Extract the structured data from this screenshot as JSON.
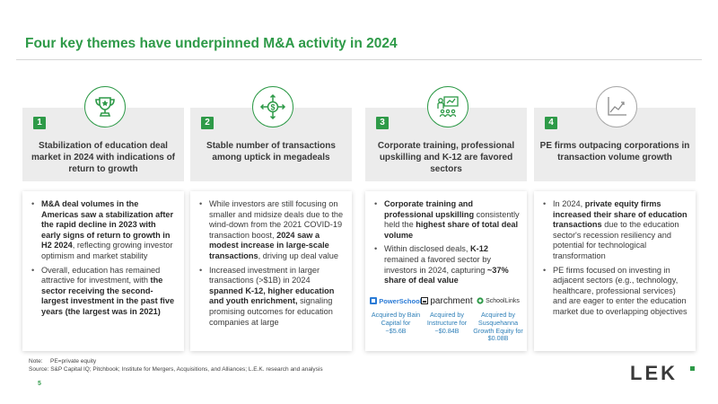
{
  "title": "Four key themes have underpinned M&A activity in 2024",
  "colors": {
    "accent": "#2e9a48",
    "header_bg": "#ececec",
    "link_blue": "#2e7fb8"
  },
  "columns": [
    {
      "number": "1",
      "icon": "trophy-icon",
      "heading": "Stabilization of education deal market in 2024 with indications of return to growth",
      "bullets": [
        [
          {
            "t": "M&A deal volumes in the Americas saw a stabilization after the rapid decline in 2023 with early signs of return to growth in H2 2024",
            "b": true
          },
          {
            "t": ", reflecting growing investor optimism and market stability",
            "b": false
          }
        ],
        [
          {
            "t": "Overall, education has remained attractive for investment, with ",
            "b": false
          },
          {
            "t": "the sector receiving the second-largest investment in the past five years (the largest was in 2021)",
            "b": true
          }
        ]
      ]
    },
    {
      "number": "2",
      "icon": "dollar-arrows-icon",
      "heading": "Stable number of transactions among uptick in megadeals",
      "bullets": [
        [
          {
            "t": "While investors are still focusing on smaller and midsize deals due to the wind-down from the 2021 COVID-19 transaction boost, ",
            "b": false
          },
          {
            "t": "2024 saw a modest increase in large-scale transactions",
            "b": true
          },
          {
            "t": ", driving up deal value",
            "b": false
          }
        ],
        [
          {
            "t": "Increased investment in larger transactions (>$1B) in 2024 ",
            "b": false
          },
          {
            "t": "spanned K-12, higher education and youth enrichment,",
            "b": true
          },
          {
            "t": " signaling promising outcomes for education companies at large",
            "b": false
          }
        ]
      ]
    },
    {
      "number": "3",
      "icon": "training-icon",
      "heading": "Corporate training, professional upskilling and K-12 are favored sectors",
      "bullets": [
        [
          {
            "t": "Corporate training and professional upskilling",
            "b": true
          },
          {
            "t": " consistently held the ",
            "b": false
          },
          {
            "t": "highest share of total deal volume",
            "b": true
          }
        ],
        [
          {
            "t": "Within disclosed deals, ",
            "b": false
          },
          {
            "t": "K-12",
            "b": true
          },
          {
            "t": " remained a favored sector by investors in 2024, capturing ",
            "b": false
          },
          {
            "t": "~37% share of deal value",
            "b": true
          }
        ]
      ],
      "logos": [
        {
          "name": "PowerSchool",
          "icon": "powerschool-logo-icon",
          "caption": "Acquired by Bain Capital for ~$5.6B"
        },
        {
          "name": "parchment",
          "icon": "parchment-logo-icon",
          "caption": "Acquired by Instructure for ~$0.84B"
        },
        {
          "name": "SchoolLinks",
          "icon": "schoollinks-logo-icon",
          "caption": "Acquired by Susquehanna Growth Equity for $0.08B"
        }
      ]
    },
    {
      "number": "4",
      "icon": "line-chart-icon",
      "heading": "PE firms outpacing corporations in transaction volume growth",
      "bullets": [
        [
          {
            "t": "In 2024, ",
            "b": false
          },
          {
            "t": "private equity firms increased their share of education transactions",
            "b": true
          },
          {
            "t": " due to the education sector's recession resiliency and potential for technological transformation",
            "b": false
          }
        ],
        [
          {
            "t": "PE firms focused on investing in adjacent sectors (e.g., technology, healthcare, professional services) and are eager to enter the education market due to overlapping objectives",
            "b": false
          }
        ]
      ]
    }
  ],
  "footer": {
    "note_label": "Note:",
    "note_text": "PE=private equity",
    "source": "Source: S&P Capital IQ; Pitchbook; Institute for Mergers, Acquisitions, and Alliances; L.E.K. research and analysis",
    "page_number": "5",
    "brand": "LEK"
  }
}
